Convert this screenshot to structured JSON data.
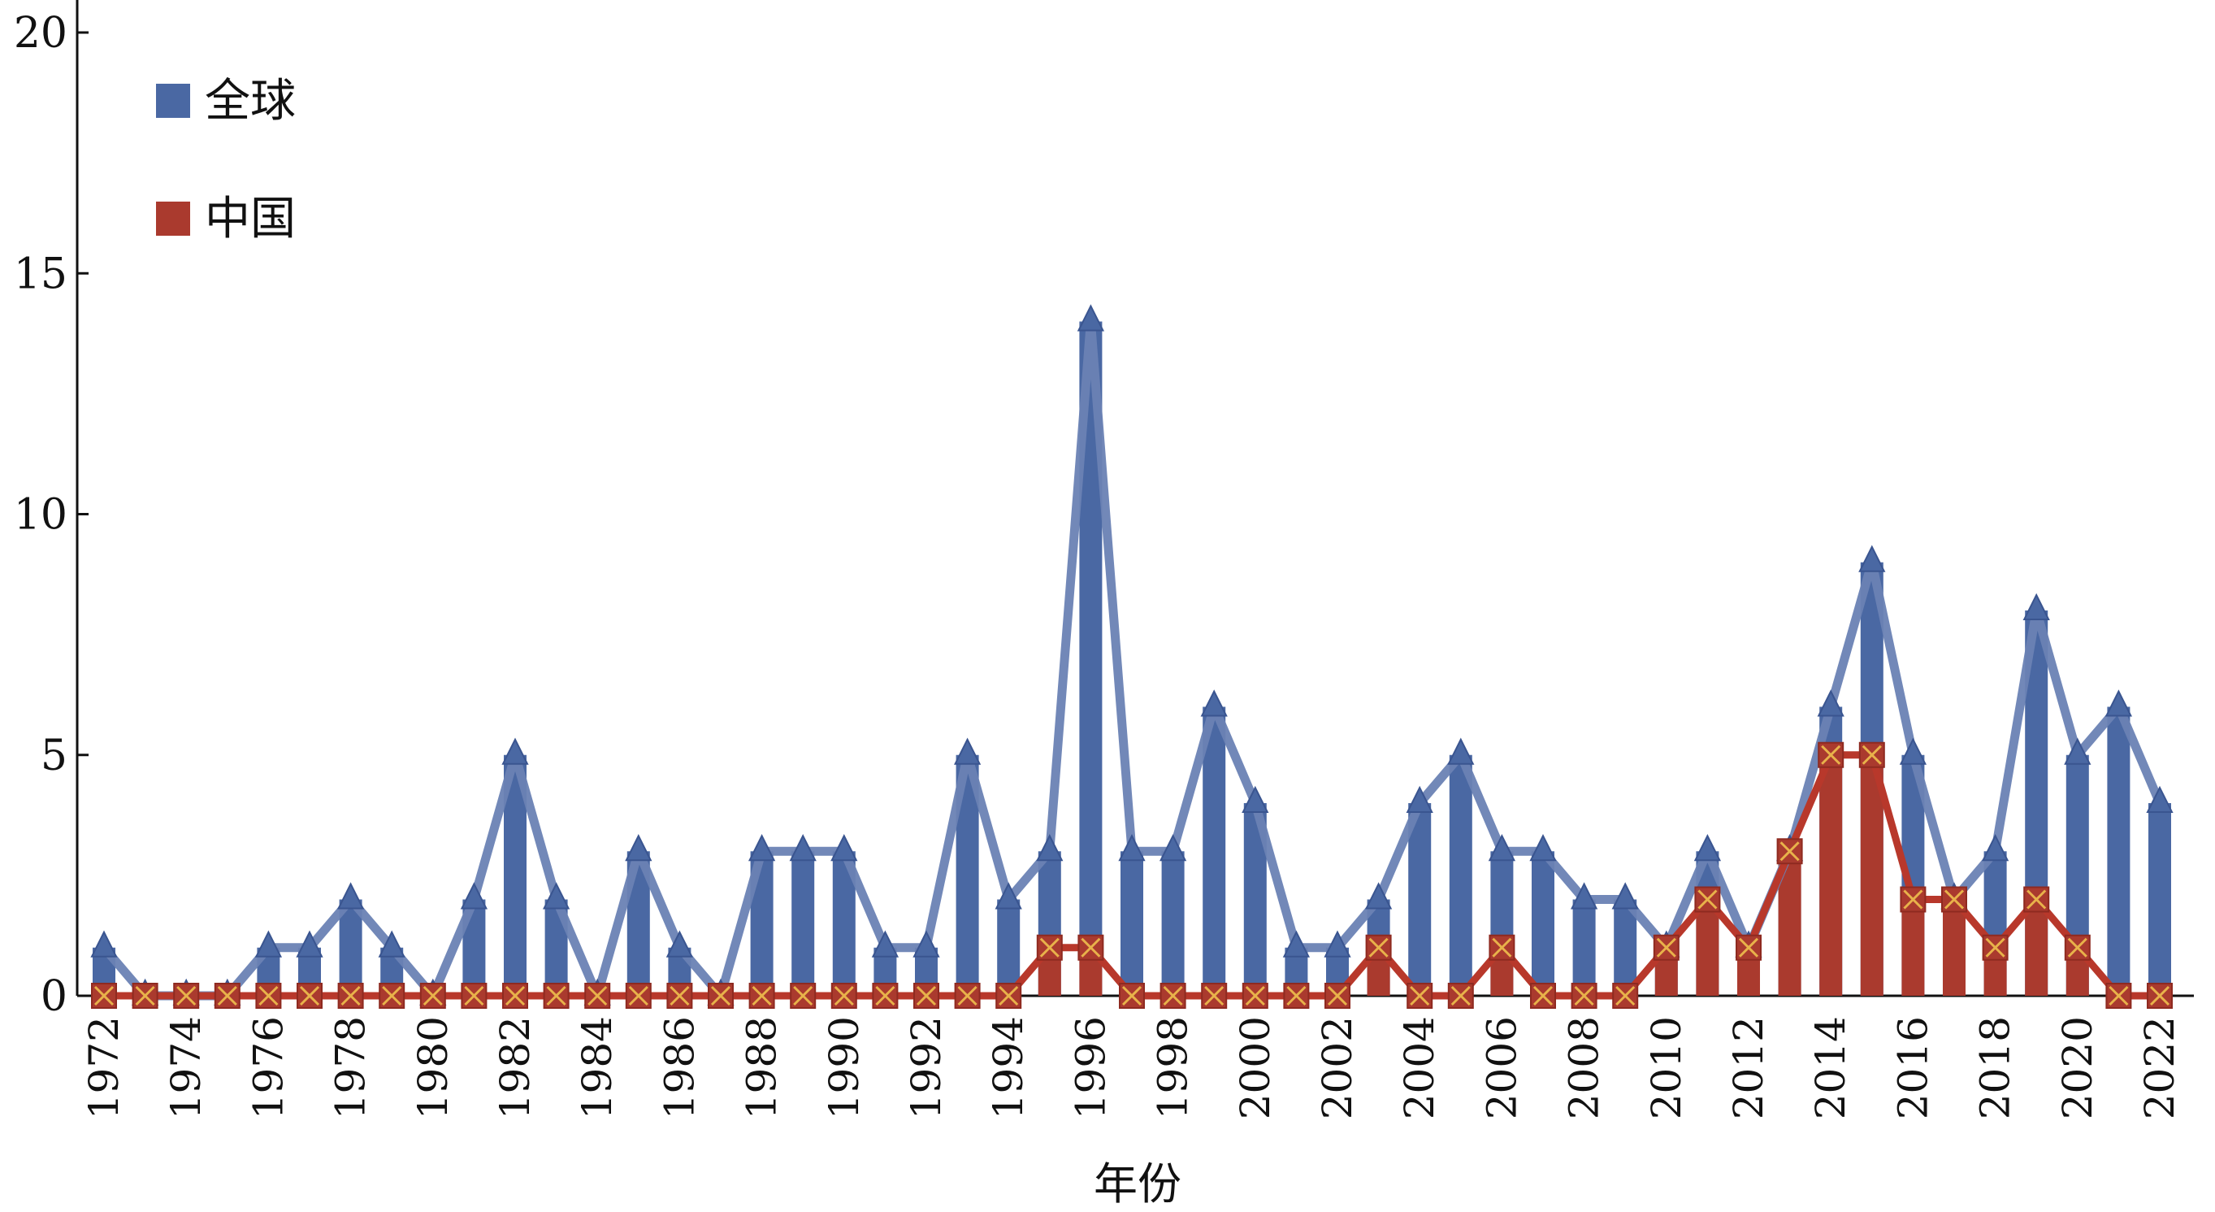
{
  "chart_data": {
    "type": "bar",
    "title": "",
    "xlabel": "年份",
    "ylabel": "",
    "ylim": [
      0,
      20
    ],
    "yticks": [
      0,
      5,
      10,
      15,
      20
    ],
    "legend_position": "top-left",
    "grid": false,
    "categories": [
      1972,
      1973,
      1974,
      1975,
      1976,
      1977,
      1978,
      1979,
      1980,
      1981,
      1982,
      1983,
      1984,
      1985,
      1986,
      1987,
      1988,
      1989,
      1990,
      1991,
      1992,
      1993,
      1994,
      1995,
      1996,
      1997,
      1998,
      1999,
      2000,
      2001,
      2002,
      2003,
      2004,
      2005,
      2006,
      2007,
      2008,
      2009,
      2010,
      2011,
      2012,
      2013,
      2014,
      2015,
      2016,
      2017,
      2018,
      2019,
      2020,
      2021,
      2022
    ],
    "xtick_labels": [
      "1972",
      "1974",
      "1976",
      "1978",
      "1980",
      "1982",
      "1984",
      "1986",
      "1988",
      "1990",
      "1992",
      "1994",
      "1996",
      "1998",
      "2000",
      "2002",
      "2004",
      "2006",
      "2008",
      "2010",
      "2012",
      "2014",
      "2016",
      "2018",
      "2020",
      "2022"
    ],
    "series": [
      {
        "name": "全球",
        "color": "#4A68A3",
        "line_color": "#6A82B4",
        "marker": "triangle",
        "values": [
          1,
          0,
          0,
          0,
          1,
          1,
          2,
          1,
          0,
          2,
          5,
          2,
          0,
          3,
          1,
          0,
          3,
          3,
          3,
          1,
          1,
          5,
          2,
          3,
          14,
          3,
          3,
          6,
          4,
          1,
          1,
          2,
          4,
          5,
          3,
          3,
          2,
          2,
          1,
          3,
          1,
          3,
          6,
          9,
          5,
          2,
          3,
          8,
          5,
          6,
          4
        ]
      },
      {
        "name": "中国",
        "color": "#AA3A2E",
        "line_color": "#B8382B",
        "marker": "x-square",
        "values": [
          0,
          0,
          0,
          0,
          0,
          0,
          0,
          0,
          0,
          0,
          0,
          0,
          0,
          0,
          0,
          0,
          0,
          0,
          0,
          0,
          0,
          0,
          0,
          1,
          1,
          0,
          0,
          0,
          0,
          0,
          0,
          1,
          0,
          0,
          1,
          0,
          0,
          0,
          1,
          2,
          1,
          3,
          5,
          5,
          2,
          2,
          1,
          2,
          1,
          0,
          0
        ]
      }
    ]
  }
}
